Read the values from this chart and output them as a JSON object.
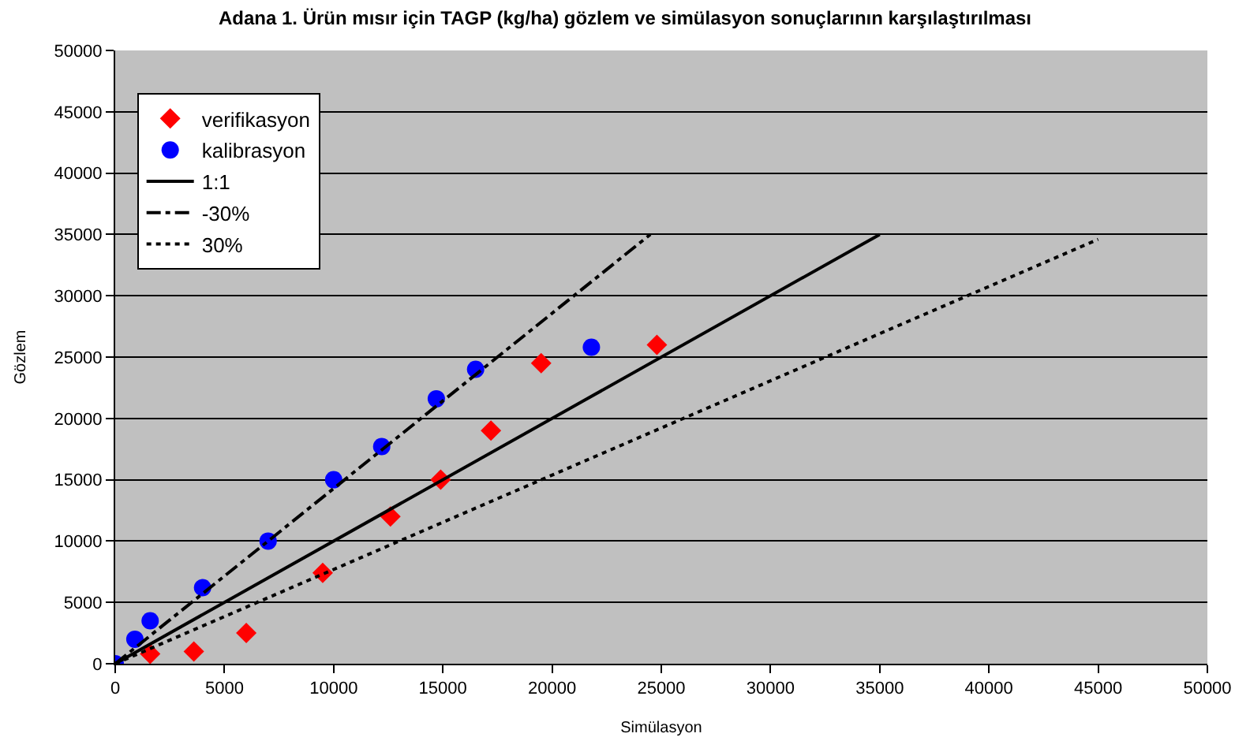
{
  "chart_data": {
    "type": "scatter",
    "title": "Adana 1. Ürün mısır için TAGP (kg/ha) gözlem ve simülasyon sonuçlarının karşılaştırılması",
    "xlabel": "Simülasyon",
    "ylabel": "Gözlem",
    "series": [
      {
        "name": "verifikasyon",
        "color": "#ff0000",
        "marker": "diamond",
        "x": [
          1600,
          3600,
          6000,
          9500,
          12600,
          14900,
          17200,
          19500,
          24800
        ],
        "values": [
          800,
          1000,
          2500,
          7400,
          12000,
          15000,
          19000,
          24500,
          26000
        ]
      },
      {
        "name": "kalibrasyon",
        "color": "#0000ff",
        "marker": "circle",
        "x": [
          0,
          900,
          1600,
          4000,
          7000,
          10000,
          12200,
          14700,
          16500,
          21800
        ],
        "values": [
          0,
          2000,
          3500,
          6200,
          10000,
          15000,
          17700,
          21600,
          24000,
          25800
        ]
      },
      {
        "name": "1:1",
        "type": "line",
        "color": "#000000",
        "line_style": "solid",
        "marker": "none",
        "x": [
          0,
          35000
        ],
        "values": [
          0,
          35000
        ]
      },
      {
        "name": "-30%",
        "type": "line",
        "color": "#000000",
        "line_style": "dashdot",
        "marker": "none",
        "x": [
          0,
          24500
        ],
        "values": [
          0,
          35000
        ]
      },
      {
        "name": "30%",
        "type": "line",
        "color": "#000000",
        "line_style": "dotted",
        "marker": "none",
        "x": [
          0,
          45000
        ],
        "values": [
          0,
          34600
        ]
      }
    ],
    "xlim": [
      0,
      50000
    ],
    "xticks": [
      0,
      5000,
      10000,
      15000,
      20000,
      25000,
      30000,
      35000,
      40000,
      45000,
      50000
    ],
    "ylim": [
      0,
      50000
    ],
    "yticks": [
      0,
      5000,
      10000,
      15000,
      20000,
      25000,
      30000,
      35000,
      40000,
      45000,
      50000
    ],
    "grid": "y",
    "legend": "top left"
  }
}
